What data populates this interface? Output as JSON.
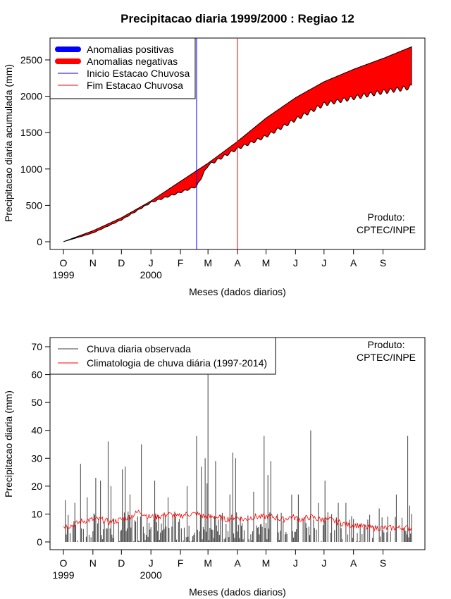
{
  "chart_data": [
    {
      "type": "area",
      "title": "Precipitacao diaria 1999/2000 : Regiao 12",
      "xlabel": "Meses (dados diarios)",
      "ylabel": "Precipitacao diaria acumulada (mm)",
      "ylim": [
        0,
        2700
      ],
      "yticks": [
        0,
        500,
        1000,
        1500,
        2000,
        2500
      ],
      "month_ticks": [
        {
          "day": 0,
          "label": "O"
        },
        {
          "day": 31,
          "label": "N"
        },
        {
          "day": 61,
          "label": "D"
        },
        {
          "day": 92,
          "label": "J"
        },
        {
          "day": 123,
          "label": "F"
        },
        {
          "day": 152,
          "label": "M"
        },
        {
          "day": 183,
          "label": "A"
        },
        {
          "day": 213,
          "label": "M"
        },
        {
          "day": 244,
          "label": "J"
        },
        {
          "day": 274,
          "label": "J"
        },
        {
          "day": 305,
          "label": "A"
        },
        {
          "day": 336,
          "label": "S"
        }
      ],
      "year_labels": [
        {
          "day": 0,
          "label": "1999"
        },
        {
          "day": 92,
          "label": "2000"
        }
      ],
      "climatology_cumulative": [
        [
          0,
          0
        ],
        [
          31,
          150
        ],
        [
          61,
          330
        ],
        [
          92,
          560
        ],
        [
          123,
          830
        ],
        [
          152,
          1080
        ],
        [
          183,
          1380
        ],
        [
          213,
          1700
        ],
        [
          244,
          1980
        ],
        [
          274,
          2200
        ],
        [
          305,
          2370
        ],
        [
          336,
          2520
        ],
        [
          366,
          2680
        ]
      ],
      "observed_cumulative": [
        [
          0,
          0
        ],
        [
          31,
          120
        ],
        [
          61,
          300
        ],
        [
          92,
          540
        ],
        [
          123,
          680
        ],
        [
          140,
          760
        ],
        [
          152,
          1050
        ],
        [
          183,
          1280
        ],
        [
          213,
          1450
        ],
        [
          244,
          1680
        ],
        [
          274,
          1890
        ],
        [
          305,
          1980
        ],
        [
          336,
          2060
        ],
        [
          364,
          2120
        ],
        [
          366,
          2140
        ]
      ],
      "start_rainy_season_day": 140,
      "end_rainy_season_day": 183,
      "legend": [
        {
          "label": "Anomalias positivas",
          "color": "#0000ff"
        },
        {
          "label": "Anomalias negativas",
          "color": "#ff0000"
        },
        {
          "label": "Inicio Estacao Chuvosa",
          "color": "#0000ff"
        },
        {
          "label": "Fim Estacao Chuvosa",
          "color": "#ff0000"
        }
      ],
      "product_label": [
        "Produto:",
        "CPTEC/INPE"
      ]
    },
    {
      "type": "bar",
      "title": "",
      "xlabel": "Meses (dados diarios)",
      "ylabel": "Precipitacao diaria (mm)",
      "ylim": [
        0,
        72
      ],
      "yticks": [
        0,
        10,
        20,
        30,
        40,
        50,
        60,
        70
      ],
      "month_ticks": [
        {
          "day": 0,
          "label": "O"
        },
        {
          "day": 31,
          "label": "N"
        },
        {
          "day": 61,
          "label": "D"
        },
        {
          "day": 92,
          "label": "J"
        },
        {
          "day": 123,
          "label": "F"
        },
        {
          "day": 152,
          "label": "M"
        },
        {
          "day": 183,
          "label": "A"
        },
        {
          "day": 213,
          "label": "M"
        },
        {
          "day": 244,
          "label": "J"
        },
        {
          "day": 274,
          "label": "J"
        },
        {
          "day": 305,
          "label": "A"
        },
        {
          "day": 336,
          "label": "S"
        }
      ],
      "year_labels": [
        {
          "day": 0,
          "label": "1999"
        },
        {
          "day": 92,
          "label": "2000"
        }
      ],
      "observed_peaks": [
        [
          2,
          15
        ],
        [
          12,
          14
        ],
        [
          18,
          28
        ],
        [
          25,
          16
        ],
        [
          34,
          23
        ],
        [
          39,
          22
        ],
        [
          47,
          36
        ],
        [
          50,
          20
        ],
        [
          62,
          26
        ],
        [
          65,
          27
        ],
        [
          70,
          17
        ],
        [
          82,
          35
        ],
        [
          96,
          22
        ],
        [
          110,
          16
        ],
        [
          130,
          20
        ],
        [
          140,
          38
        ],
        [
          145,
          27
        ],
        [
          149,
          30
        ],
        [
          151,
          21
        ],
        [
          152,
          60
        ],
        [
          160,
          29
        ],
        [
          175,
          17
        ],
        [
          178,
          32
        ],
        [
          181,
          30
        ],
        [
          200,
          18
        ],
        [
          211,
          38
        ],
        [
          215,
          24
        ],
        [
          218,
          29
        ],
        [
          240,
          17
        ],
        [
          247,
          17
        ],
        [
          260,
          40
        ],
        [
          268,
          14
        ],
        [
          275,
          22
        ],
        [
          289,
          14
        ],
        [
          297,
          14
        ],
        [
          320,
          8
        ],
        [
          332,
          12
        ],
        [
          350,
          17
        ],
        [
          362,
          38
        ],
        [
          364,
          13
        ],
        [
          366,
          10
        ]
      ],
      "climatology_series": [
        [
          0,
          5.5
        ],
        [
          10,
          6
        ],
        [
          20,
          7.5
        ],
        [
          30,
          8
        ],
        [
          40,
          8
        ],
        [
          50,
          7
        ],
        [
          60,
          8
        ],
        [
          70,
          9
        ],
        [
          80,
          11
        ],
        [
          90,
          9
        ],
        [
          100,
          9
        ],
        [
          110,
          10
        ],
        [
          120,
          9
        ],
        [
          130,
          10
        ],
        [
          140,
          10
        ],
        [
          150,
          9
        ],
        [
          160,
          9
        ],
        [
          170,
          8
        ],
        [
          180,
          9
        ],
        [
          190,
          8
        ],
        [
          200,
          9
        ],
        [
          210,
          9
        ],
        [
          220,
          9
        ],
        [
          230,
          8
        ],
        [
          240,
          9
        ],
        [
          250,
          8
        ],
        [
          260,
          9
        ],
        [
          270,
          8
        ],
        [
          280,
          8
        ],
        [
          290,
          7
        ],
        [
          300,
          6
        ],
        [
          310,
          6
        ],
        [
          320,
          5
        ],
        [
          330,
          5
        ],
        [
          340,
          5
        ],
        [
          350,
          5
        ],
        [
          360,
          5
        ],
        [
          366,
          5
        ]
      ],
      "legend": [
        {
          "label": "Chuva diaria observada",
          "color": "#404040"
        },
        {
          "label": "Climatologia de chuva diária (1997-2014)",
          "color": "#ff0000"
        }
      ],
      "product_label": [
        "Produto:",
        "CPTEC/INPE"
      ]
    }
  ]
}
